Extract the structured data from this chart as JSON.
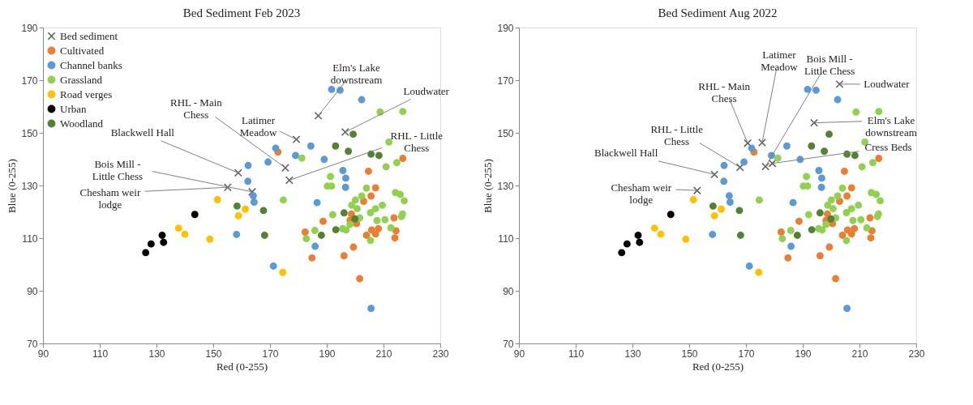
{
  "chart_data": [
    {
      "type": "scatter",
      "title": "Bed Sediment Feb 2023",
      "xlabel": "Red (0-255)",
      "ylabel": "Blue (0-255)",
      "xlim": [
        90,
        230
      ],
      "ylim": [
        70,
        190
      ],
      "xticks": [
        90,
        110,
        130,
        150,
        170,
        190,
        210,
        230
      ],
      "yticks": [
        70,
        90,
        110,
        130,
        150,
        170,
        190
      ],
      "grid": false,
      "legend": "top left",
      "marker": "circle",
      "series": [
        {
          "name": "Bed sediment",
          "color": "#595959",
          "marker": "cross",
          "x": [
            187.0,
            196.5,
            179.3,
            175.4,
            176.8,
            158.8,
            163.7,
            155.1
          ],
          "values": [
            156.5,
            150.3,
            147.5,
            136.7,
            132.0,
            134.8,
            127.6,
            129.3
          ]
        },
        {
          "name": "Cultivated",
          "color": "#ed7d31",
          "x": [
            172.8,
            216.8,
            204.7,
            207.2,
            205.6,
            203.0,
            188.7,
            182.4,
            198.7,
            198.2,
            200.5,
            204.4,
            205.8,
            208.2,
            207.2,
            204.0,
            213.7,
            214.4,
            214.0,
            199.4,
            196.1,
            184.8,
            201.6
          ],
          "values": [
            142.7,
            140.3,
            135.4,
            129.1,
            126.0,
            124.0,
            116.4,
            112.3,
            119.2,
            116.7,
            115.5,
            null,
            113.1,
            113.6,
            111.6,
            111.1,
            117.7,
            112.8,
            110.1,
            106.6,
            103.3,
            102.5,
            94.6
          ]
        },
        {
          "name": "Channel banks",
          "color": "#5b9bd5",
          "x": [
            191.7,
            194.7,
            202.3,
            172.0,
            179.0,
            184.4,
            189.1,
            169.3,
            162.3,
            162.2,
            164.1,
            164.4,
            158.2,
            195.7,
            196.7,
            196.6,
            186.6,
            185.9,
            171.2,
            205.6
          ],
          "values": [
            166.5,
            166.2,
            162.6,
            144.2,
            141.4,
            145.0,
            139.9,
            138.9,
            137.6,
            131.6,
            126.1,
            123.7,
            111.4,
            135.7,
            132.8,
            129.3,
            123.5,
            106.9,
            99.4,
            83.3
          ]
        },
        {
          "name": "Grassland",
          "color": "#92d050",
          "x": [
            208.8,
            216.8,
            211.9,
            181.2,
            214.7,
            210.9,
            174.7,
            191.3,
            190.2,
            191.7,
            204.0,
            214.2,
            215.9,
            217.3,
            202.3,
            200.1,
            198.8,
            200.7,
            192.1,
            205.4,
            207.2,
            209.6,
            210.5,
            207.7,
            201.6,
            216.7,
            216.3,
            212.6,
            185.8,
            182.8,
            195.6,
            196.8,
            205.4,
            198.2
          ],
          "values": [
            157.9,
            158.1,
            146.5,
            140.4,
            138.7,
            137.1,
            124.5,
            133.4,
            129.8,
            129.8,
            129.0,
            127.3,
            126.6,
            124.2,
            126.0,
            124.5,
            122.5,
            121.2,
            118.9,
            119.7,
            121.2,
            122.5,
            117.0,
            116.7,
            117.7,
            119.2,
            118.2,
            113.9,
            112.9,
            109.8,
            113.6,
            113.1,
            109.1,
            115.2
          ]
        },
        {
          "name": "Road verges",
          "color": "#ffc000",
          "x": [
            137.8,
            140.0,
            148.8,
            150.7,
            151.5,
            158.9,
            161.3,
            174.5
          ],
          "values": [
            113.8,
            111.5,
            109.6,
            null,
            124.6,
            118.5,
            121.0,
            97.0
          ]
        },
        {
          "name": "Urban",
          "color": "#000000",
          "x": [
            126.2,
            128.1,
            132.0,
            132.5,
            143.5
          ],
          "values": [
            104.5,
            107.8,
            111.1,
            108.4,
            119.0
          ]
        },
        {
          "name": "Woodland",
          "color": "#548235",
          "x": [
            158.4,
            167.7,
            168.1,
            196.1,
            199.9,
            193.2,
            188.1,
            199.3,
            193.1,
            197.6,
            205.6,
            208.4
          ],
          "values": [
            122.2,
            120.5,
            111.1,
            119.6,
            117.3,
            113.2,
            111.1,
            149.5,
            145.0,
            143.0,
            141.9,
            141.4
          ]
        }
      ],
      "annotations": [
        {
          "text": "Elm's Lake downstream",
          "x": 187.0,
          "y": 156.5
        },
        {
          "text": "Loudwater",
          "x": 196.5,
          "y": 150.3
        },
        {
          "text": "Latimer Meadow",
          "x": 179.3,
          "y": 147.5
        },
        {
          "text": "RHL - Main Chess",
          "x": 175.4,
          "y": 136.7
        },
        {
          "text": "RHL - Little Chess",
          "x": 176.8,
          "y": 132.0
        },
        {
          "text": "Blackwell Hall",
          "x": 158.8,
          "y": 134.8
        },
        {
          "text": "Bois Mill - Little Chess",
          "x": 163.7,
          "y": 127.6
        },
        {
          "text": "Chesham weir lodge",
          "x": 155.1,
          "y": 129.3
        }
      ]
    },
    {
      "type": "scatter",
      "title": "Bed Sediment Aug 2022",
      "xlabel": "Red (0-255)",
      "ylabel": "Blue (0-255)",
      "xlim": [
        90,
        230
      ],
      "ylim": [
        70,
        190
      ],
      "xticks": [
        90,
        110,
        130,
        150,
        170,
        190,
        210,
        230
      ],
      "yticks": [
        70,
        90,
        110,
        130,
        150,
        170,
        190
      ],
      "grid": false,
      "legend": false,
      "marker": "circle",
      "series": [
        {
          "color": "#595959",
          "marker": "cross",
          "x": [
            170.6,
            167.9,
            158.9,
            152.8,
            175.7,
            176.9,
            179.3,
            194.0,
            203.0
          ],
          "values": [
            146.1,
            136.9,
            134.2,
            128.1,
            146.3,
            137.2,
            138.4,
            153.8,
            168.5
          ]
        },
        {
          "color": "#ed7d31",
          "x": [
            172.8,
            216.8,
            204.7,
            207.2,
            205.6,
            203.0,
            188.7,
            182.4,
            198.7,
            198.2,
            200.5,
            204.4,
            205.8,
            208.2,
            207.2,
            204.0,
            213.7,
            214.4,
            214.0,
            199.4,
            196.1,
            184.8,
            201.6
          ],
          "values": [
            142.7,
            140.3,
            135.4,
            129.1,
            126.0,
            124.0,
            116.4,
            112.3,
            119.2,
            116.7,
            115.5,
            null,
            113.1,
            113.6,
            111.6,
            111.1,
            117.7,
            112.8,
            110.1,
            106.6,
            103.3,
            102.5,
            94.6
          ]
        },
        {
          "color": "#5b9bd5",
          "x": [
            191.7,
            194.7,
            202.3,
            172.0,
            179.0,
            184.4,
            189.1,
            169.3,
            162.3,
            162.2,
            164.1,
            164.4,
            158.2,
            195.7,
            196.7,
            196.6,
            186.6,
            185.9,
            171.2,
            205.6
          ],
          "values": [
            166.5,
            166.2,
            162.6,
            144.2,
            141.4,
            145.0,
            139.9,
            138.9,
            137.6,
            131.6,
            126.1,
            123.7,
            111.4,
            135.7,
            132.8,
            129.3,
            123.5,
            106.9,
            99.4,
            83.3
          ]
        },
        {
          "color": "#92d050",
          "x": [
            208.8,
            216.8,
            211.9,
            181.2,
            214.7,
            210.9,
            174.7,
            191.3,
            190.2,
            191.7,
            204.0,
            214.2,
            215.9,
            217.3,
            202.3,
            200.1,
            198.8,
            200.7,
            192.1,
            205.4,
            207.2,
            209.6,
            210.5,
            207.7,
            201.6,
            216.7,
            216.3,
            212.6,
            185.8,
            182.8,
            195.6,
            196.8,
            205.4,
            198.2
          ],
          "values": [
            157.9,
            158.1,
            146.5,
            140.4,
            138.7,
            137.1,
            124.5,
            133.4,
            129.8,
            129.8,
            129.0,
            127.3,
            126.6,
            124.2,
            126.0,
            124.5,
            122.5,
            121.2,
            118.9,
            119.7,
            121.2,
            122.5,
            117.0,
            116.7,
            117.7,
            119.2,
            118.2,
            113.9,
            112.9,
            109.8,
            113.6,
            113.1,
            109.1,
            115.2
          ]
        },
        {
          "color": "#ffc000",
          "x": [
            137.8,
            140.0,
            148.8,
            150.7,
            151.5,
            158.9,
            161.3,
            174.5
          ],
          "values": [
            113.8,
            111.5,
            109.6,
            null,
            124.6,
            118.5,
            121.0,
            97.0
          ]
        },
        {
          "color": "#000000",
          "x": [
            126.2,
            128.1,
            132.0,
            132.5,
            143.5
          ],
          "values": [
            104.5,
            107.8,
            111.1,
            108.4,
            119.0
          ]
        },
        {
          "color": "#548235",
          "x": [
            158.4,
            167.7,
            168.1,
            196.1,
            199.9,
            193.2,
            188.1,
            199.3,
            193.1,
            197.6,
            205.6,
            208.4
          ],
          "values": [
            122.2,
            120.5,
            111.1,
            119.6,
            117.3,
            113.2,
            111.1,
            149.5,
            145.0,
            143.0,
            141.9,
            141.4
          ]
        }
      ],
      "annotations": [
        {
          "text": "RHL - Main Chess",
          "x": 170.6,
          "y": 146.1
        },
        {
          "text": "RHL - Little Chess",
          "x": 167.9,
          "y": 136.9
        },
        {
          "text": "Blackwell Hall",
          "x": 158.9,
          "y": 134.2
        },
        {
          "text": "Chesham weir lodge",
          "x": 152.8,
          "y": 128.1
        },
        {
          "text": "Latimer Meadow",
          "x": 175.7,
          "y": 146.3
        },
        {
          "text": "Bois Mill - Little Chess",
          "x": 176.9,
          "y": 137.2
        },
        {
          "text": "Cress Beds",
          "x": 179.3,
          "y": 138.4
        },
        {
          "text": "Elm's Lake downstream",
          "x": 194.0,
          "y": 153.8
        },
        {
          "text": "Loudwater",
          "x": 203.0,
          "y": 168.5
        }
      ]
    }
  ]
}
